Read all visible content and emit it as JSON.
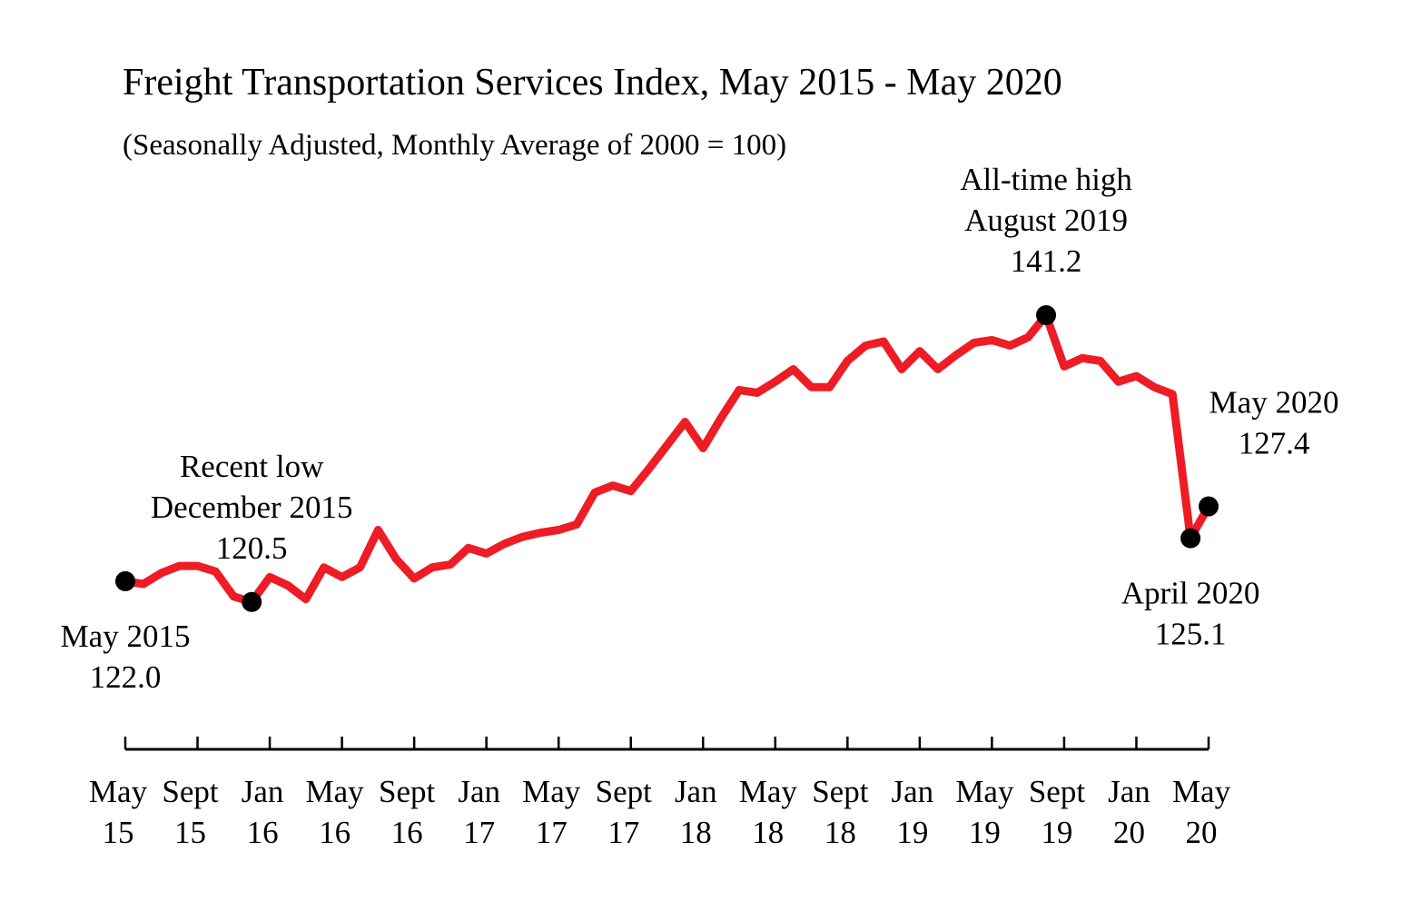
{
  "chart_data": {
    "type": "line",
    "title": "Freight Transportation Services Index, May 2015 - May 2020",
    "subtitle": "(Seasonally Adjusted, Monthly Average of 2000 = 100)",
    "xlabel": "",
    "ylabel": "",
    "grid": false,
    "ylim": [
      110,
      145
    ],
    "line_color": "#ee1c25",
    "marker_color": "#000000",
    "x_start": "2015-05",
    "x_end": "2020-05",
    "x_ticks": [
      {
        "month": "2015-05",
        "line1": "May",
        "line2": "15"
      },
      {
        "month": "2015-09",
        "line1": "Sept",
        "line2": "15"
      },
      {
        "month": "2016-01",
        "line1": "Jan",
        "line2": "16"
      },
      {
        "month": "2016-05",
        "line1": "May",
        "line2": "16"
      },
      {
        "month": "2016-09",
        "line1": "Sept",
        "line2": "16"
      },
      {
        "month": "2017-01",
        "line1": "Jan",
        "line2": "17"
      },
      {
        "month": "2017-05",
        "line1": "May",
        "line2": "17"
      },
      {
        "month": "2017-09",
        "line1": "Sept",
        "line2": "17"
      },
      {
        "month": "2018-01",
        "line1": "Jan",
        "line2": "18"
      },
      {
        "month": "2018-05",
        "line1": "May",
        "line2": "18"
      },
      {
        "month": "2018-09",
        "line1": "Sept",
        "line2": "18"
      },
      {
        "month": "2019-01",
        "line1": "Jan",
        "line2": "19"
      },
      {
        "month": "2019-05",
        "line1": "May",
        "line2": "19"
      },
      {
        "month": "2019-09",
        "line1": "Sept",
        "line2": "19"
      },
      {
        "month": "2020-01",
        "line1": "Jan",
        "line2": "20"
      },
      {
        "month": "2020-05",
        "line1": "May",
        "line2": "20"
      }
    ],
    "series": [
      {
        "x": [
          "2015-05",
          "2015-06",
          "2015-07",
          "2015-08",
          "2015-09",
          "2015-10",
          "2015-11",
          "2015-12",
          "2016-01",
          "2016-02",
          "2016-03",
          "2016-04",
          "2016-05",
          "2016-06",
          "2016-07",
          "2016-08",
          "2016-09",
          "2016-10",
          "2016-11",
          "2016-12",
          "2017-01",
          "2017-02",
          "2017-03",
          "2017-04",
          "2017-05",
          "2017-06",
          "2017-07",
          "2017-08",
          "2017-09",
          "2017-10",
          "2017-11",
          "2017-12",
          "2018-01",
          "2018-02",
          "2018-03",
          "2018-04",
          "2018-05",
          "2018-06",
          "2018-07",
          "2018-08",
          "2018-09",
          "2018-10",
          "2018-11",
          "2018-12",
          "2019-01",
          "2019-02",
          "2019-03",
          "2019-04",
          "2019-05",
          "2019-06",
          "2019-07",
          "2019-08",
          "2019-09",
          "2019-10",
          "2019-11",
          "2019-12",
          "2020-01",
          "2020-02",
          "2020-03",
          "2020-04",
          "2020-05"
        ],
        "values": [
          122.0,
          121.8,
          122.6,
          123.1,
          123.1,
          122.7,
          120.9,
          120.5,
          122.3,
          121.7,
          120.7,
          123.0,
          122.3,
          123.0,
          125.7,
          123.6,
          122.2,
          123.0,
          123.2,
          124.4,
          124.0,
          124.7,
          125.2,
          125.5,
          125.7,
          126.1,
          128.4,
          128.9,
          128.5,
          130.1,
          131.8,
          133.5,
          131.6,
          133.8,
          135.8,
          135.6,
          136.4,
          137.3,
          136.0,
          136.0,
          137.9,
          139.0,
          139.3,
          137.3,
          138.6,
          137.3,
          138.3,
          139.2,
          139.4,
          139.0,
          139.6,
          141.2,
          137.5,
          138.1,
          137.9,
          136.4,
          136.8,
          136.0,
          135.5,
          125.1,
          127.4
        ]
      }
    ],
    "annotations": [
      {
        "month": "2015-05",
        "value": 122.0,
        "lines": [
          "May 2015",
          "122.0"
        ],
        "pos": "below"
      },
      {
        "month": "2015-12",
        "value": 120.5,
        "lines": [
          "Recent low",
          "December 2015",
          "120.5"
        ],
        "pos": "above"
      },
      {
        "month": "2019-08",
        "value": 141.2,
        "lines": [
          "All-time high",
          "August 2019",
          "141.2"
        ],
        "pos": "above"
      },
      {
        "month": "2020-04",
        "value": 125.1,
        "lines": [
          "April 2020",
          "125.1"
        ],
        "pos": "below"
      },
      {
        "month": "2020-05",
        "value": 127.4,
        "lines": [
          "May 2020",
          "127.4"
        ],
        "pos": "above-right"
      }
    ]
  }
}
